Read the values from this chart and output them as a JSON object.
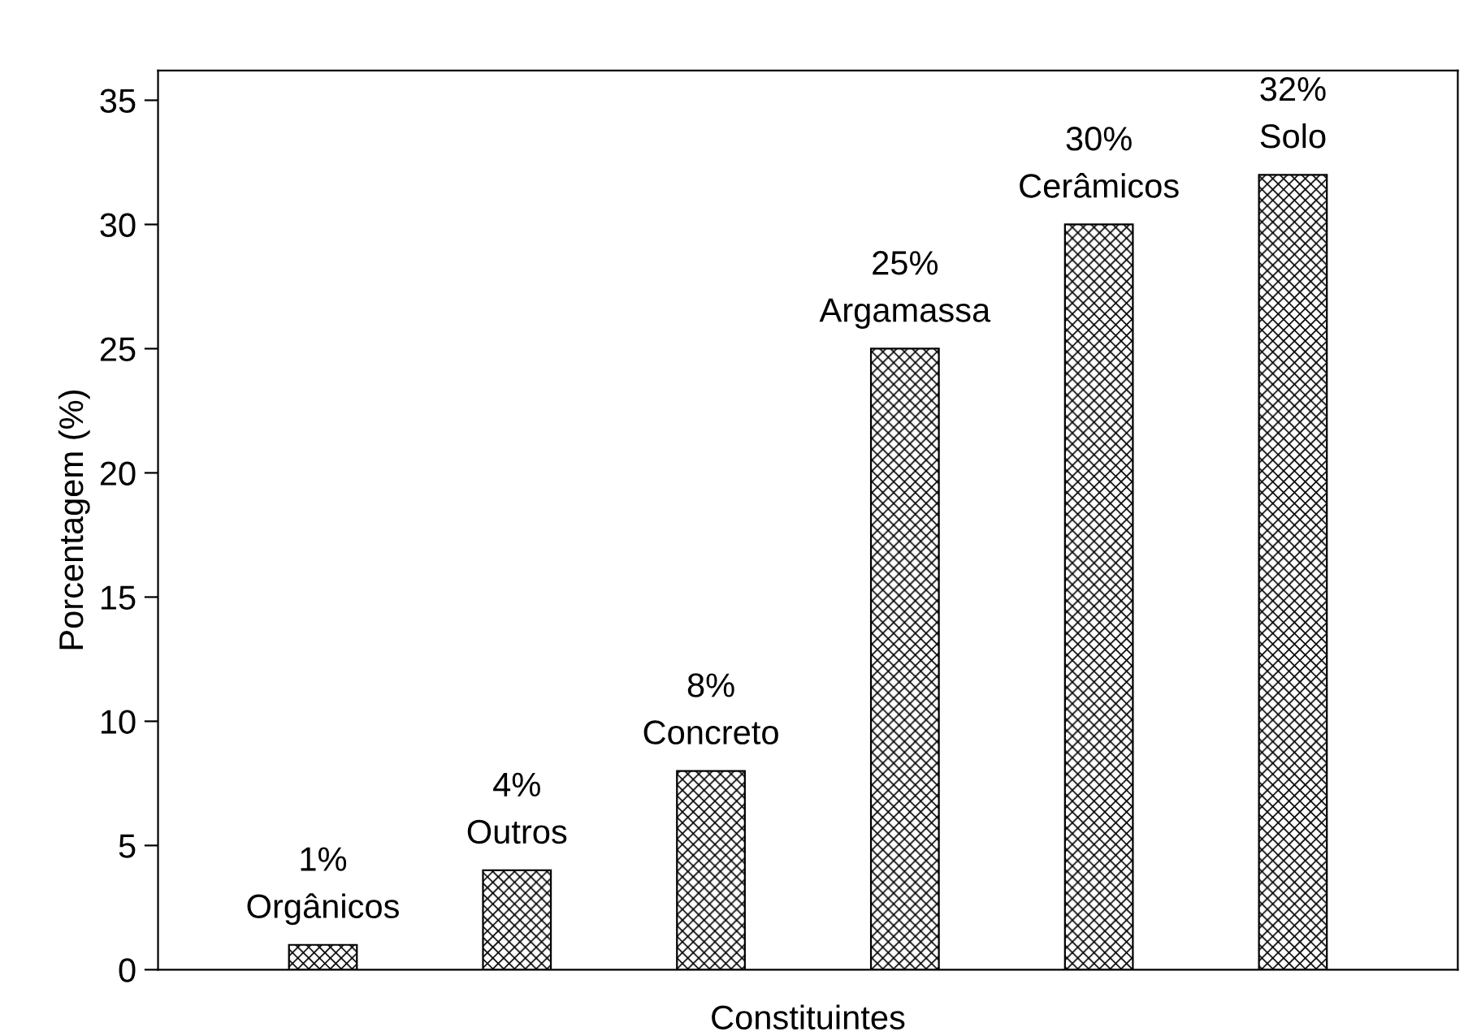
{
  "chart_data": {
    "type": "bar",
    "xlabel": "Constituintes",
    "ylabel": "Porcentagem (%)",
    "categories": [
      "Orgânicos",
      "Outros",
      "Concreto",
      "Argamassa",
      "Cerâmicos",
      "Solo"
    ],
    "values": [
      1,
      4,
      8,
      25,
      30,
      32
    ],
    "value_labels": [
      "1%",
      "4%",
      "8%",
      "25%",
      "30%",
      "32%"
    ],
    "color": "#000000",
    "ylim": [
      0,
      36.2
    ],
    "yticks": [
      0,
      5,
      10,
      15,
      20,
      25,
      30,
      35
    ],
    "tick_labels": "y",
    "grid": false,
    "legend": false
  }
}
